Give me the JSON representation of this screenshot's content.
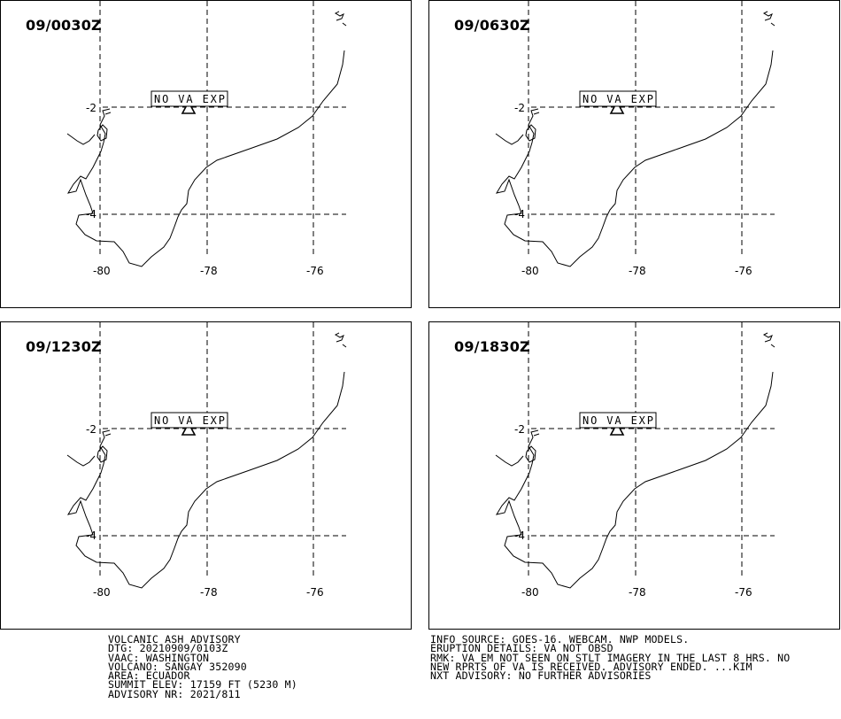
{
  "panels": [
    {
      "time": "09/0030Z",
      "label": "NO VA EXP"
    },
    {
      "time": "09/0630Z",
      "label": "NO VA EXP"
    },
    {
      "time": "09/1230Z",
      "label": "NO VA EXP"
    },
    {
      "time": "09/1830Z",
      "label": "NO VA EXP"
    }
  ],
  "axes": {
    "lon_labels": [
      "-80",
      "-78",
      "-76"
    ],
    "lat_labels": [
      "-2",
      "-4"
    ]
  },
  "advisory_left": {
    "line1": "VOLCANIC ASH ADVISORY",
    "line2": "DTG: 20210909/0103Z",
    "line3": "VAAC: WASHINGTON",
    "line4": "VOLCANO: SANGAY 352090",
    "line5": "AREA: ECUADOR",
    "line6": "SUMMIT ELEV: 17159 FT (5230 M)",
    "line7": "ADVISORY NR: 2021/811"
  },
  "advisory_right": {
    "line1": "INFO SOURCE: GOES-16. WEBCAM. NWP MODELS.",
    "line2": "ERUPTION DETAILS: VA NOT OBSD",
    "line3": "RMK: VA EM NOT SEEN ON STLT IMAGERY IN THE LAST 8 HRS. NO",
    "line4": "NEW RPRTS OF VA IS RECEIVED. ADVISORY ENDED. ...KIM",
    "line5": "NXT ADVISORY: NO FURTHER ADVISORIES"
  }
}
